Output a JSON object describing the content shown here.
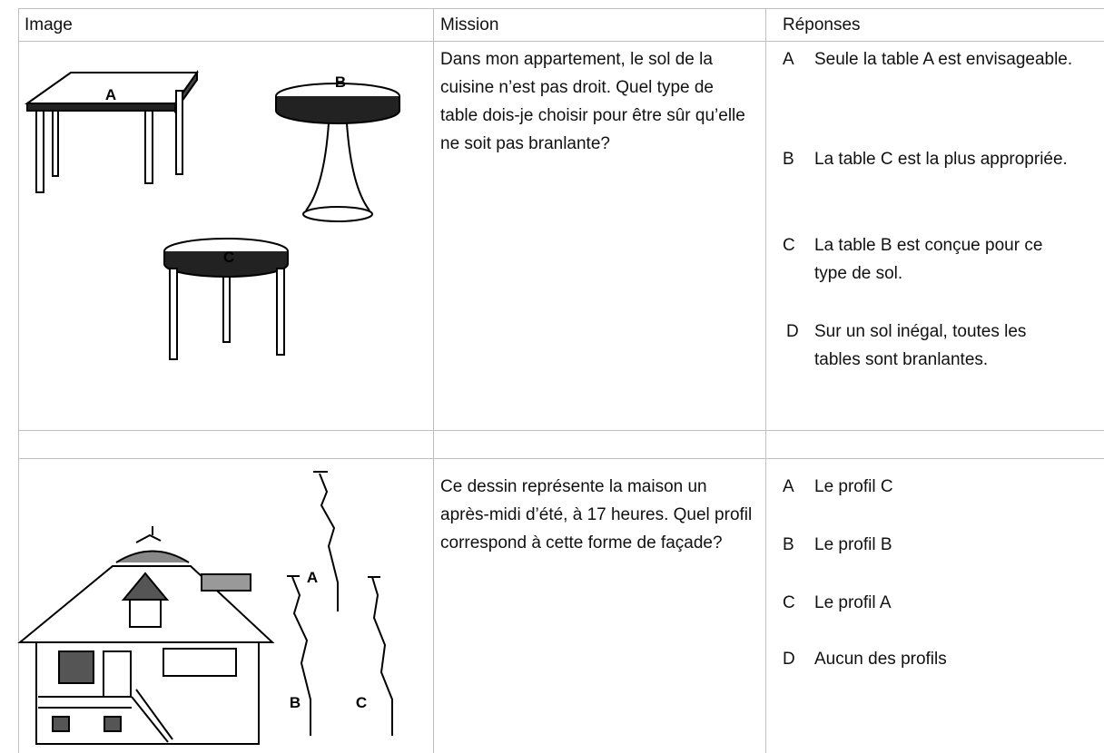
{
  "table": {
    "headers": [
      "Image",
      "Mission",
      "Réponses"
    ],
    "rows": [
      {
        "image_labels": [
          "A",
          "B",
          "C"
        ],
        "mission": "Dans mon appartement, le sol de la cuisine n’est pas droit. Quel type de table dois-je choisir pour être sûr qu’elle ne soit pas branlante?",
        "answers": [
          {
            "letter": "A",
            "text": "Seule la table A est envisageable."
          },
          {
            "letter": "B",
            "text": "La table C est la plus appropriée."
          },
          {
            "letter": "C",
            "text": "La table B est conçue pour ce type de sol."
          },
          {
            "letter": "D",
            "text": "Sur un sol inégal, toutes les tables sont branlantes."
          }
        ]
      },
      {
        "image_labels": [
          "A",
          "B",
          "C"
        ],
        "mission": "Ce dessin représente la maison un après-midi d’été, à 17 heures. Quel profil correspond à cette forme de façade?",
        "answers": [
          {
            "letter": "A",
            "text": "Le profil C"
          },
          {
            "letter": "B",
            "text": "Le profil B"
          },
          {
            "letter": "C",
            "text": "Le profil A"
          },
          {
            "letter": "D",
            "text": "Aucun des profils"
          }
        ]
      }
    ]
  }
}
